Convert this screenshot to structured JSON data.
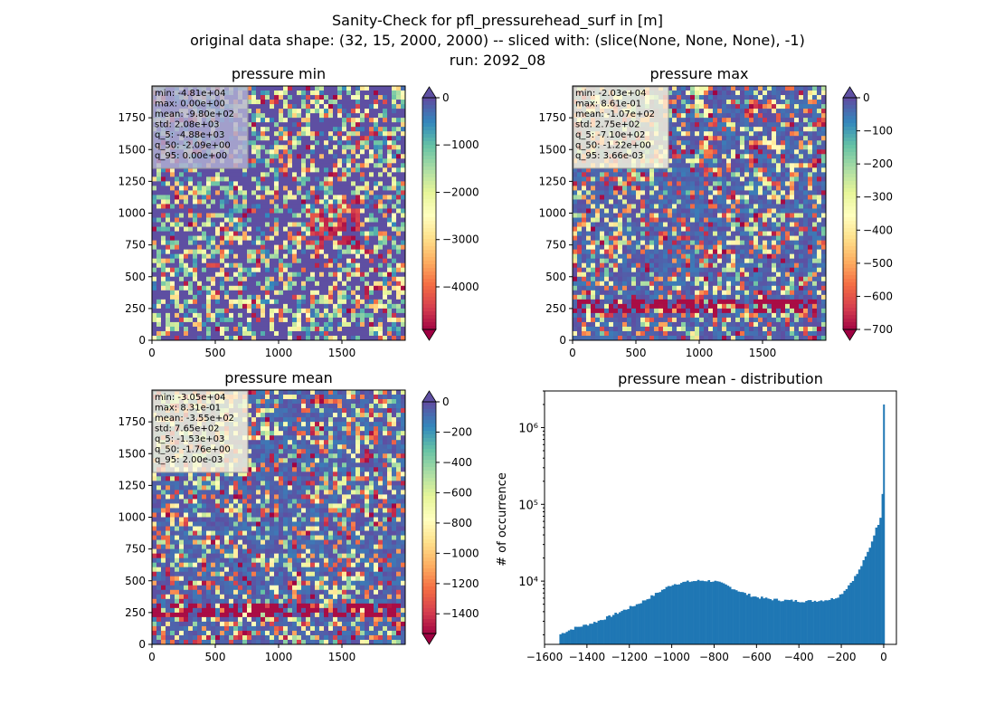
{
  "figure": {
    "title_lines": [
      "Sanity-Check for pfl_pressurehead_surf in [m]",
      "original data shape: (32, 15, 2000, 2000) -- sliced with: (slice(None, None, None), -1)",
      "run: 2092_08"
    ]
  },
  "colors": {
    "spectral": [
      "#9e0142",
      "#d53e4f",
      "#f46d43",
      "#fdae61",
      "#fee08b",
      "#ffffbf",
      "#e6f598",
      "#abdda4",
      "#66c2a5",
      "#3288bd",
      "#5e4fa2"
    ],
    "histogram": "#1f77b4",
    "stats_box_min": "#b3b3d6",
    "stats_box_other": "#fffbe0"
  },
  "chart_data": [
    {
      "type": "heatmap",
      "title": "pressure min",
      "x_ticks": [
        0,
        500,
        1000,
        1500
      ],
      "y_ticks": [
        0,
        250,
        500,
        750,
        1000,
        1250,
        1500,
        1750
      ],
      "xlim": [
        0,
        2000
      ],
      "ylim": [
        0,
        2000
      ],
      "colorbar": {
        "min": -4900,
        "max": 0,
        "ticks": [
          0,
          -1000,
          -2000,
          -3000,
          -4000
        ],
        "tick_labels": [
          "0",
          "−1000",
          "−2000",
          "−3000",
          "−4000"
        ],
        "extend": "both"
      },
      "stats": [
        "min: -4.81e+04",
        "max: 0.00e+00",
        "mean: -9.80e+02",
        "std: 2.08e+03",
        "q_5: -4.88e+03",
        "q_50: -2.09e+00",
        "q_95: 0.00e+00"
      ],
      "dominant": "blue-purple"
    },
    {
      "type": "heatmap",
      "title": "pressure max",
      "x_ticks": [
        0,
        500,
        1000,
        1500
      ],
      "y_ticks": [
        0,
        250,
        500,
        750,
        1000,
        1250,
        1500,
        1750
      ],
      "xlim": [
        0,
        2000
      ],
      "ylim": [
        0,
        2000
      ],
      "colorbar": {
        "min": -700,
        "max": 0,
        "ticks": [
          0,
          -100,
          -200,
          -300,
          -400,
          -500,
          -600,
          -700
        ],
        "tick_labels": [
          "0",
          "−100",
          "−200",
          "−300",
          "−400",
          "−500",
          "−600",
          "−700"
        ],
        "extend": "both"
      },
      "stats": [
        "min: -2.03e+04",
        "max: 8.61e-01",
        "mean: -1.07e+02",
        "std: 2.75e+02",
        "q_5: -7.10e+02",
        "q_50: -1.22e+00",
        "q_95: 3.66e-03"
      ],
      "dominant": "pale-yellow"
    },
    {
      "type": "heatmap",
      "title": "pressure mean",
      "x_ticks": [
        0,
        500,
        1000,
        1500
      ],
      "y_ticks": [
        0,
        250,
        500,
        750,
        1000,
        1250,
        1500,
        1750
      ],
      "xlim": [
        0,
        2000
      ],
      "ylim": [
        0,
        2000
      ],
      "colorbar": {
        "min": -1530,
        "max": 0,
        "ticks": [
          0,
          -200,
          -400,
          -600,
          -800,
          -1000,
          -1200,
          -1400
        ],
        "tick_labels": [
          "0",
          "−200",
          "−400",
          "−600",
          "−800",
          "−1000",
          "−1200",
          "−1400"
        ],
        "extend": "both"
      },
      "stats": [
        "min: -3.05e+04",
        "max: 8.31e-01",
        "mean: -3.55e+02",
        "std: 7.65e+02",
        "q_5: -1.53e+03",
        "q_50: -1.76e+00",
        "q_95: 2.00e-03"
      ],
      "dominant": "pale-yellow"
    },
    {
      "type": "bar",
      "subtype": "histogram",
      "title": "pressure mean - distribution",
      "xlabel": "",
      "ylabel": "# of occurrence",
      "y_scale": "log",
      "xlim": [
        -1600,
        60
      ],
      "ylim": [
        1500,
        3000000
      ],
      "x_ticks": [
        -1600,
        -1400,
        -1200,
        -1000,
        -800,
        -600,
        -400,
        -200,
        0
      ],
      "x_tick_labels": [
        "−1600",
        "−1400",
        "−1200",
        "−1000",
        "−800",
        "−600",
        "−400",
        "−200",
        "0"
      ],
      "y_ticks": [
        10000,
        100000,
        1000000
      ],
      "y_tick_labels": [
        "10⁴",
        "10⁵",
        "10⁶"
      ],
      "bin_width": 10,
      "x": [
        -1530,
        -1500,
        -1450,
        -1400,
        -1350,
        -1300,
        -1250,
        -1200,
        -1150,
        -1100,
        -1050,
        -1000,
        -950,
        -900,
        -850,
        -800,
        -750,
        -700,
        -650,
        -600,
        -550,
        -500,
        -450,
        -400,
        -350,
        -300,
        -250,
        -220,
        -200,
        -180,
        -150,
        -120,
        -100,
        -80,
        -60,
        -40,
        -30,
        -20,
        -10,
        -5,
        0
      ],
      "values": [
        2000,
        2200,
        2500,
        2700,
        3000,
        3400,
        3900,
        4500,
        5200,
        6200,
        7500,
        9000,
        9600,
        10000,
        10200,
        10000,
        9000,
        7800,
        6800,
        6200,
        5900,
        5700,
        5600,
        5500,
        5500,
        5600,
        5800,
        6200,
        6800,
        7800,
        10000,
        13000,
        17000,
        22000,
        30000,
        45000,
        52000,
        60000,
        80000,
        140000,
        2000000
      ]
    }
  ]
}
